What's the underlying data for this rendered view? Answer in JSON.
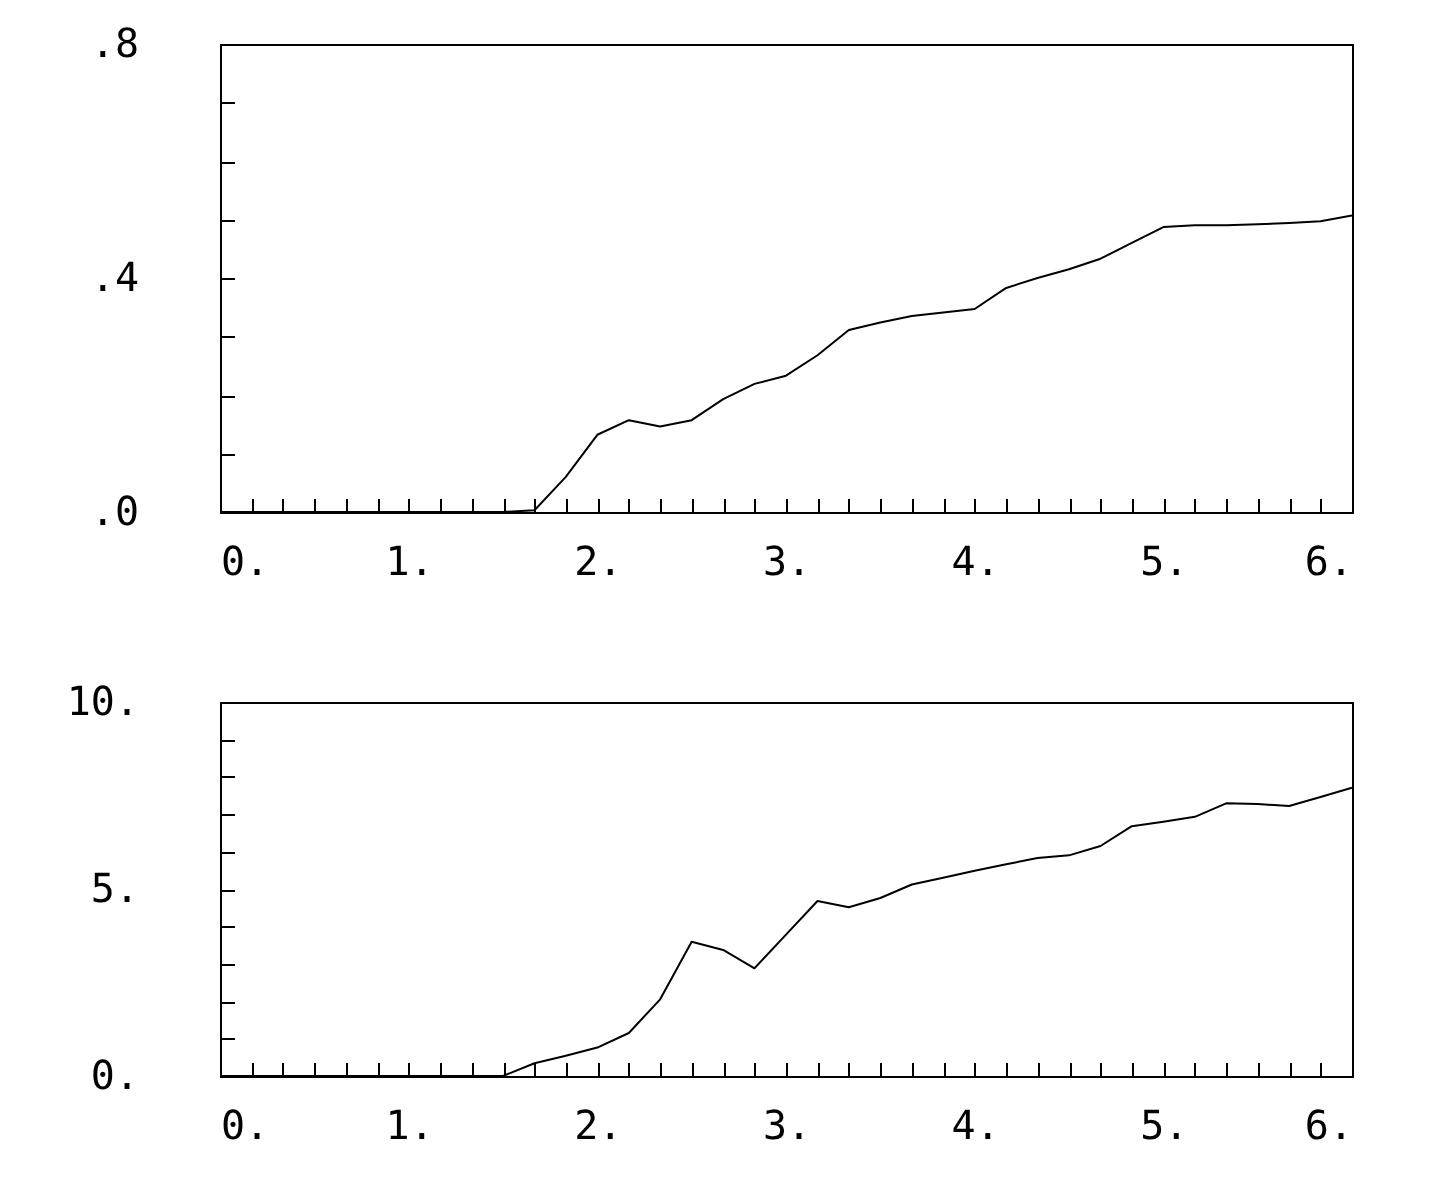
{
  "chart_data": [
    {
      "type": "line",
      "x": [
        0,
        0.167,
        0.333,
        0.5,
        0.667,
        0.833,
        1,
        1.167,
        1.333,
        1.5,
        1.667,
        1.833,
        2,
        2.167,
        2.333,
        2.5,
        2.667,
        2.833,
        3,
        3.167,
        3.333,
        3.5,
        3.667,
        3.833,
        4,
        4.167,
        4.333,
        4.5,
        4.667,
        4.833,
        5,
        5.167,
        5.333,
        5.5,
        5.667,
        5.833,
        6
      ],
      "series": [
        {
          "color": "#000000",
          "values": [
            0,
            0,
            0,
            0,
            0,
            0,
            0,
            0,
            0,
            0,
            0.003,
            0.06,
            0.132,
            0.157,
            0.146,
            0.157,
            0.193,
            0.219,
            0.233,
            0.268,
            0.311,
            0.324,
            0.335,
            0.341,
            0.347,
            0.383,
            0.4,
            0.415,
            0.433,
            0.46,
            0.487,
            0.49,
            0.49,
            0.492,
            0.494,
            0.497,
            0.507
          ]
        }
      ],
      "xlim": [
        0,
        6
      ],
      "ylim": [
        0,
        0.8
      ],
      "xticks": [
        {
          "value": 0,
          "label": "0."
        },
        {
          "value": 0.167,
          "label": null
        },
        {
          "value": 0.333,
          "label": null
        },
        {
          "value": 0.5,
          "label": null
        },
        {
          "value": 0.667,
          "label": null
        },
        {
          "value": 0.833,
          "label": null
        },
        {
          "value": 1,
          "label": "1."
        },
        {
          "value": 1.167,
          "label": null
        },
        {
          "value": 1.333,
          "label": null
        },
        {
          "value": 1.5,
          "label": null
        },
        {
          "value": 1.667,
          "label": null
        },
        {
          "value": 1.833,
          "label": null
        },
        {
          "value": 2,
          "label": "2."
        },
        {
          "value": 2.167,
          "label": null
        },
        {
          "value": 2.333,
          "label": null
        },
        {
          "value": 2.5,
          "label": null
        },
        {
          "value": 2.667,
          "label": null
        },
        {
          "value": 2.833,
          "label": null
        },
        {
          "value": 3,
          "label": "3."
        },
        {
          "value": 3.167,
          "label": null
        },
        {
          "value": 3.333,
          "label": null
        },
        {
          "value": 3.5,
          "label": null
        },
        {
          "value": 3.667,
          "label": null
        },
        {
          "value": 3.833,
          "label": null
        },
        {
          "value": 4,
          "label": "4."
        },
        {
          "value": 4.167,
          "label": null
        },
        {
          "value": 4.333,
          "label": null
        },
        {
          "value": 4.5,
          "label": null
        },
        {
          "value": 4.667,
          "label": null
        },
        {
          "value": 4.833,
          "label": null
        },
        {
          "value": 5,
          "label": "5."
        },
        {
          "value": 5.167,
          "label": null
        },
        {
          "value": 5.333,
          "label": null
        },
        {
          "value": 5.5,
          "label": null
        },
        {
          "value": 5.667,
          "label": null
        },
        {
          "value": 5.833,
          "label": null
        },
        {
          "value": 6,
          "label": "6."
        }
      ],
      "yticks": [
        {
          "value": 0,
          "label": ".0"
        },
        {
          "value": 0.1,
          "label": null
        },
        {
          "value": 0.2,
          "label": null
        },
        {
          "value": 0.3,
          "label": null
        },
        {
          "value": 0.4,
          "label": ".4"
        },
        {
          "value": 0.5,
          "label": null
        },
        {
          "value": 0.6,
          "label": null
        },
        {
          "value": 0.7,
          "label": null
        },
        {
          "value": 0.8,
          "label": ".8"
        }
      ],
      "grid": false,
      "marker": "none",
      "line_style": "solid"
    },
    {
      "type": "line",
      "x": [
        0,
        0.167,
        0.333,
        0.5,
        0.667,
        0.833,
        1,
        1.167,
        1.333,
        1.5,
        1.667,
        1.833,
        2,
        2.167,
        2.333,
        2.5,
        2.667,
        2.833,
        3,
        3.167,
        3.333,
        3.5,
        3.667,
        3.833,
        4,
        4.167,
        4.333,
        4.5,
        4.667,
        4.833,
        5,
        5.167,
        5.333,
        5.5,
        5.667,
        5.833,
        6
      ],
      "series": [
        {
          "color": "#000000",
          "values": [
            0,
            0,
            0,
            0,
            0,
            0,
            0,
            0,
            0,
            0,
            0.34,
            0.54,
            0.76,
            1.15,
            2.05,
            3.59,
            3.37,
            2.88,
            3.78,
            4.68,
            4.51,
            4.76,
            5.12,
            5.3,
            5.49,
            5.66,
            5.83,
            5.9,
            6.15,
            6.68,
            6.8,
            6.93,
            7.29,
            7.27,
            7.22,
            7.46,
            7.71
          ]
        }
      ],
      "xlim": [
        0,
        6
      ],
      "ylim": [
        0,
        10
      ],
      "xticks": [
        {
          "value": 0,
          "label": "0."
        },
        {
          "value": 0.167,
          "label": null
        },
        {
          "value": 0.333,
          "label": null
        },
        {
          "value": 0.5,
          "label": null
        },
        {
          "value": 0.667,
          "label": null
        },
        {
          "value": 0.833,
          "label": null
        },
        {
          "value": 1,
          "label": "1."
        },
        {
          "value": 1.167,
          "label": null
        },
        {
          "value": 1.333,
          "label": null
        },
        {
          "value": 1.5,
          "label": null
        },
        {
          "value": 1.667,
          "label": null
        },
        {
          "value": 1.833,
          "label": null
        },
        {
          "value": 2,
          "label": "2."
        },
        {
          "value": 2.167,
          "label": null
        },
        {
          "value": 2.333,
          "label": null
        },
        {
          "value": 2.5,
          "label": null
        },
        {
          "value": 2.667,
          "label": null
        },
        {
          "value": 2.833,
          "label": null
        },
        {
          "value": 3,
          "label": "3."
        },
        {
          "value": 3.167,
          "label": null
        },
        {
          "value": 3.333,
          "label": null
        },
        {
          "value": 3.5,
          "label": null
        },
        {
          "value": 3.667,
          "label": null
        },
        {
          "value": 3.833,
          "label": null
        },
        {
          "value": 4,
          "label": "4."
        },
        {
          "value": 4.167,
          "label": null
        },
        {
          "value": 4.333,
          "label": null
        },
        {
          "value": 4.5,
          "label": null
        },
        {
          "value": 4.667,
          "label": null
        },
        {
          "value": 4.833,
          "label": null
        },
        {
          "value": 5,
          "label": "5."
        },
        {
          "value": 5.167,
          "label": null
        },
        {
          "value": 5.333,
          "label": null
        },
        {
          "value": 5.5,
          "label": null
        },
        {
          "value": 5.667,
          "label": null
        },
        {
          "value": 5.833,
          "label": null
        },
        {
          "value": 6,
          "label": "6."
        }
      ],
      "yticks": [
        {
          "value": 0,
          "label": "0."
        },
        {
          "value": 1,
          "label": null
        },
        {
          "value": 2,
          "label": null
        },
        {
          "value": 3,
          "label": null
        },
        {
          "value": 4,
          "label": null
        },
        {
          "value": 5,
          "label": "5."
        },
        {
          "value": 6,
          "label": null
        },
        {
          "value": 7,
          "label": null
        },
        {
          "value": 8,
          "label": null
        },
        {
          "value": 9,
          "label": null
        },
        {
          "value": 10,
          "label": "10."
        }
      ],
      "grid": false,
      "marker": "none",
      "line_style": "solid"
    }
  ]
}
